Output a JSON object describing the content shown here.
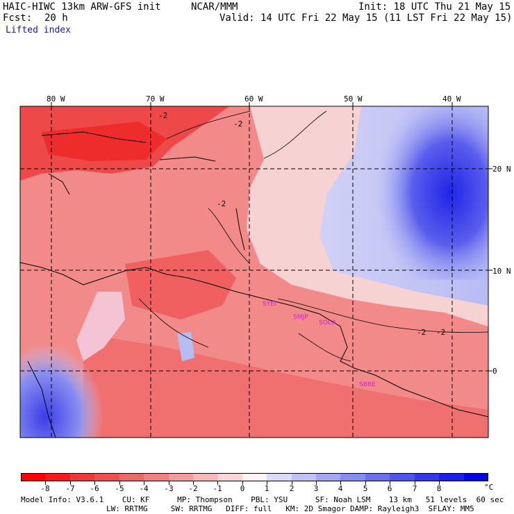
{
  "header": {
    "model_title": "HAIC-HIWC 13km ARW-GFS init",
    "org": "NCAR/MMM",
    "init": "Init: 18 UTC Thu 21 May 15",
    "fcst_label": "Fcst:",
    "fcst_value": "20 h",
    "valid": "Valid: 14 UTC Fri 22 May 15 (11 LST Fri 22 May 15)",
    "field": "Lifted index"
  },
  "map": {
    "lon_labels": [
      "80 W",
      "70 W",
      "60 W",
      "50 W",
      "40 W"
    ],
    "lat_labels": [
      "20 N",
      "10 N",
      "0"
    ],
    "stations": [
      "SYEI",
      "SMJP",
      "SOCA",
      "SBBE"
    ],
    "contour_labels": [
      "-2",
      "-2",
      "-2",
      "-2",
      "-2"
    ],
    "colors": {
      "negative_strong": "#ee1c1c",
      "negative_mid": "#f26a6a",
      "negative_weak": "#f8c8c8",
      "neutral": "#f7f3f3",
      "positive_weak": "#c8ccf6",
      "positive_mid": "#6e74ee",
      "positive_strong": "#1414e8",
      "station_color": "#d020d0"
    }
  },
  "colorbar": {
    "unit": "°C",
    "labels": [
      "-8",
      "-7",
      "-6",
      "-5",
      "-4",
      "-3",
      "-2",
      "-1",
      "0",
      "1",
      "2",
      "3",
      "4",
      "5",
      "6",
      "7",
      "8"
    ],
    "colors": [
      "#ff0000",
      "#f61c1c",
      "#f03838",
      "#ee5050",
      "#ee6868",
      "#f08080",
      "#f49c9c",
      "#f8b8b8",
      "#fad6d6",
      "#fcf4f4",
      "#dadcf8",
      "#c0c2f4",
      "#a4a8f2",
      "#888cf0",
      "#6c70ee",
      "#5054ec",
      "#3438ea",
      "#1c20e8",
      "#0000e4"
    ]
  },
  "footer": {
    "line1": "Model Info: V3.6.1    CU: KF      MP: Thompson    PBL: YSU      SF: Noah LSM    13 km   51 levels  60 sec",
    "line2": "LW: RRTMG     SW: RRTMG   DIFF: full   KM: 2D Smagor DAMP: Rayleigh3  SFLAY: MM5"
  }
}
